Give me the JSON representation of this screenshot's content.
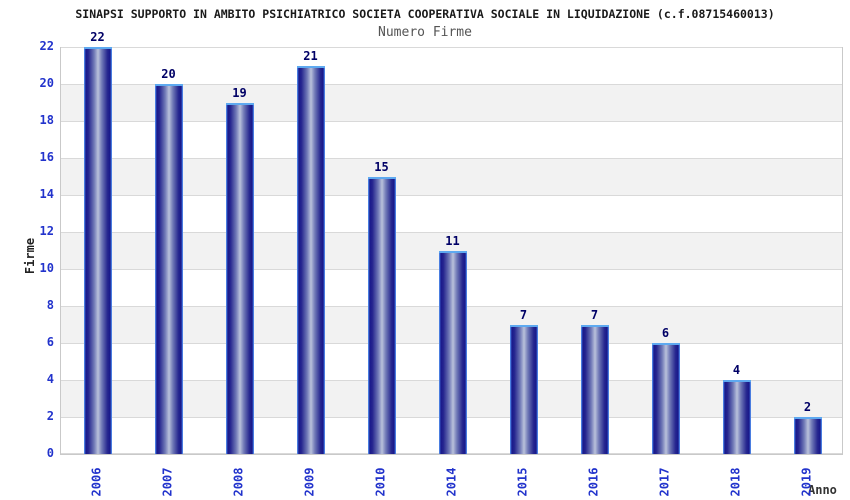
{
  "title": "SINAPSI SUPPORTO IN AMBITO PSICHIATRICO SOCIETA COOPERATIVA SOCIALE IN LIQUIDAZIONE (c.f.08715460013)",
  "subtitle": "Numero Firme",
  "chart_data": {
    "type": "bar",
    "title": "SINAPSI SUPPORTO IN AMBITO PSICHIATRICO SOCIETA COOPERATIVA SOCIALE IN LIQUIDAZIONE (c.f.08715460013)",
    "subtitle": "Numero Firme",
    "categories": [
      "2006",
      "2007",
      "2008",
      "2009",
      "2010",
      "2014",
      "2015",
      "2016",
      "2017",
      "2018",
      "2019"
    ],
    "values": [
      22,
      20,
      19,
      21,
      15,
      11,
      7,
      7,
      6,
      4,
      2
    ],
    "xlabel": "Anno",
    "ylabel": "Firme",
    "ylim": [
      0,
      22
    ],
    "ytick_step": 2,
    "yticks": [
      0,
      2,
      4,
      6,
      8,
      10,
      12,
      14,
      16,
      18,
      20,
      22
    ],
    "grid": true,
    "legend": "none",
    "colors": {
      "bar_edge": "#17178a",
      "bar_center": "#b9c1db",
      "bar_outline": "#4a7de0",
      "bar_top_border": "#5ea9f0",
      "tick_label": "#2233cc",
      "value_label": "#000066",
      "title": "#1a1a1a",
      "subtitle": "#555555",
      "axis_title": "#222222",
      "gridline": "#d9d9d9",
      "band": "#f2f2f2",
      "frame": "#c9c9c9"
    }
  }
}
